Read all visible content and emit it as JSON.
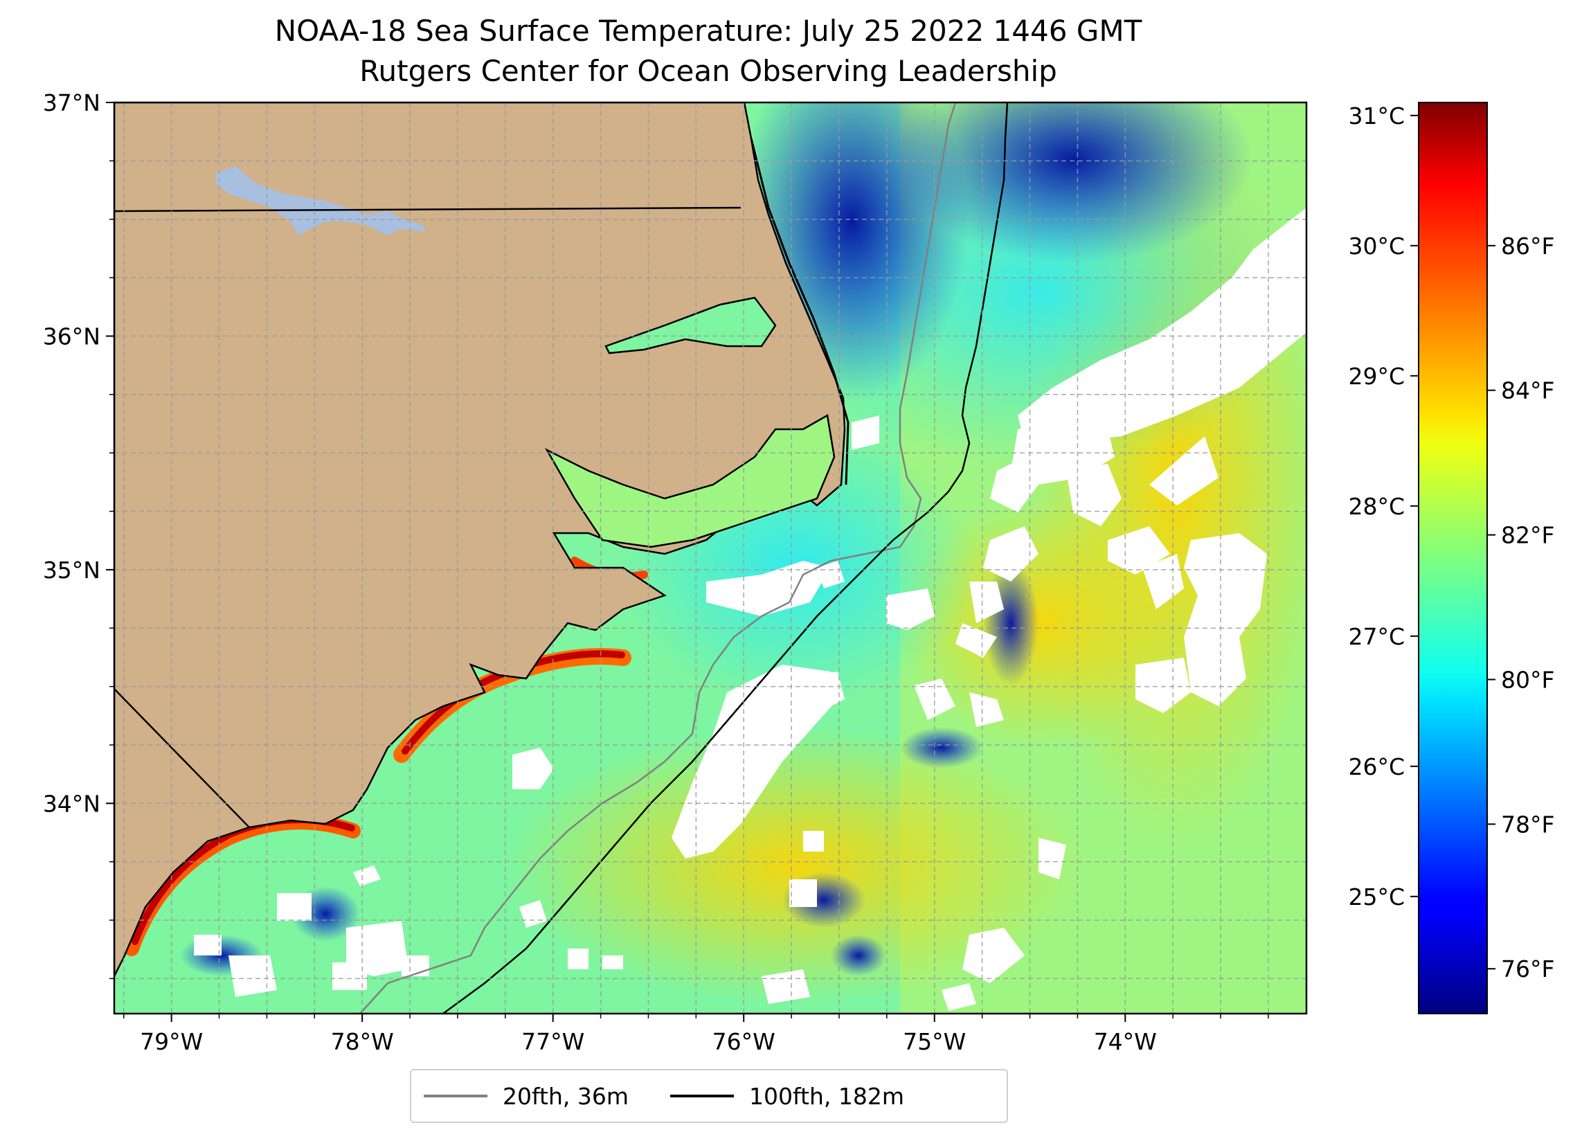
{
  "title": "NOAA-18 Sea Surface Temperature: July 25 2022 1446 GMT",
  "subtitle": "Rutgers Center for Ocean Observing Leadership",
  "map": {
    "lat_range": [
      33.1,
      37.0
    ],
    "lon_range": [
      -79.3,
      -73.05
    ],
    "lat_ticks": [
      {
        "value": 37,
        "label": "37°N"
      },
      {
        "value": 36,
        "label": "36°N"
      },
      {
        "value": 35,
        "label": "35°N"
      },
      {
        "value": 34,
        "label": "34°N"
      }
    ],
    "lon_ticks": [
      {
        "value": -79,
        "label": "79°W"
      },
      {
        "value": -78,
        "label": "78°W"
      },
      {
        "value": -77,
        "label": "77°W"
      },
      {
        "value": -76,
        "label": "76°W"
      },
      {
        "value": -75,
        "label": "75°W"
      },
      {
        "value": -74,
        "label": "74°W"
      }
    ],
    "grid": "dashed",
    "colors": {
      "land": "#d0b18a",
      "cloud": "#ffffff",
      "lake": "#a8bfe0",
      "contour_20fth": "#808080",
      "contour_100fth": "#000000"
    }
  },
  "colorbar": {
    "colormap": "jet",
    "celsius_range": [
      24.1,
      31.1
    ],
    "celsius_ticks": [
      {
        "value": 31,
        "label": "31°C"
      },
      {
        "value": 30,
        "label": "30°C"
      },
      {
        "value": 29,
        "label": "29°C"
      },
      {
        "value": 28,
        "label": "28°C"
      },
      {
        "value": 27,
        "label": "27°C"
      },
      {
        "value": 26,
        "label": "26°C"
      },
      {
        "value": 25,
        "label": "25°C"
      }
    ],
    "fahrenheit_ticks": [
      {
        "value": 86,
        "label": "86°F"
      },
      {
        "value": 84,
        "label": "84°F"
      },
      {
        "value": 82,
        "label": "82°F"
      },
      {
        "value": 80,
        "label": "80°F"
      },
      {
        "value": 78,
        "label": "78°F"
      },
      {
        "value": 76,
        "label": "76°F"
      }
    ]
  },
  "legend": {
    "items": [
      {
        "label": "20fth, 36m",
        "color": "#808080"
      },
      {
        "label": "100fth, 182m",
        "color": "#000000"
      }
    ]
  }
}
